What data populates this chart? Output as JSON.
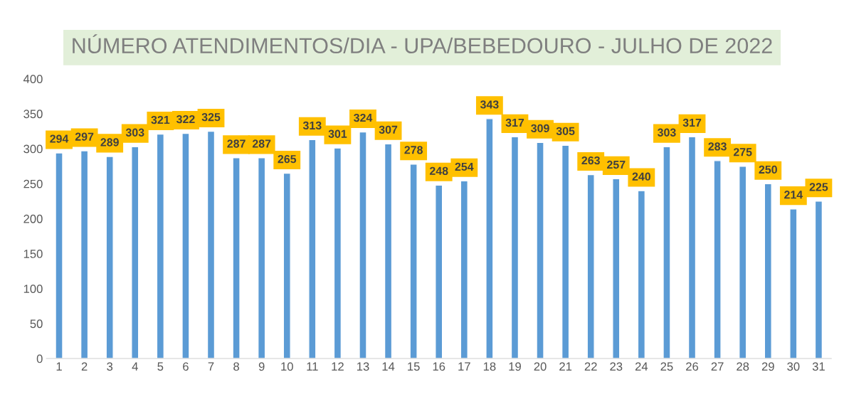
{
  "chart_data": {
    "type": "bar",
    "title": "NÚMERO ATENDIMENTOS/DIA - UPA/BEBEDOURO - JULHO DE 2022",
    "categories": [
      "1",
      "2",
      "3",
      "4",
      "5",
      "6",
      "7",
      "8",
      "9",
      "10",
      "11",
      "12",
      "13",
      "14",
      "15",
      "16",
      "17",
      "18",
      "19",
      "20",
      "21",
      "22",
      "23",
      "24",
      "25",
      "26",
      "27",
      "28",
      "29",
      "30",
      "31"
    ],
    "values": [
      294,
      297,
      289,
      303,
      321,
      322,
      325,
      287,
      287,
      265,
      313,
      301,
      324,
      307,
      278,
      248,
      254,
      343,
      317,
      309,
      305,
      263,
      257,
      240,
      303,
      317,
      283,
      275,
      250,
      214,
      225
    ],
    "color": "#5b9bd5",
    "ylim": [
      0,
      400
    ],
    "yticks": [
      0,
      50,
      100,
      150,
      200,
      250,
      300,
      350,
      400
    ],
    "data_labels": true,
    "grid": false
  }
}
